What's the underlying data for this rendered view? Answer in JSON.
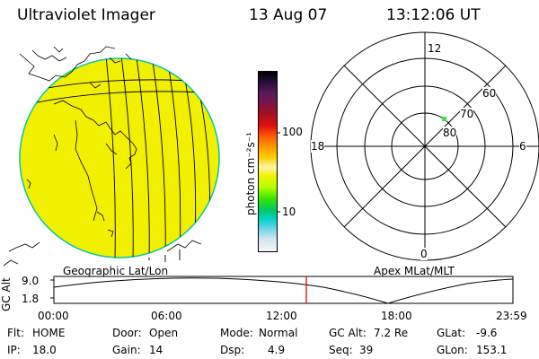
{
  "header": {
    "instrument": "Ultraviolet Imager",
    "date": "13 Aug 07",
    "time": "13:12:06 UT"
  },
  "colorbar": {
    "unit_label": "photon cm⁻²s⁻¹",
    "ticks": [
      {
        "label": "100",
        "value": 100
      },
      {
        "label": "10",
        "value": 10
      }
    ],
    "scale": "log",
    "colors_top_to_bottom": [
      "#000000",
      "#2b0f3a",
      "#5a1a5a",
      "#7a1446",
      "#a8101e",
      "#e01010",
      "#ff5a00",
      "#ff9a00",
      "#ffd200",
      "#fff4a8",
      "#f2f200",
      "#b8ff00",
      "#32e600",
      "#00c864",
      "#00d2c8",
      "#66d2e6",
      "#cfe6ef",
      "#f5f5f5"
    ]
  },
  "globe": {
    "fill_color": "#f0f000",
    "limb_color": "#00c8a0",
    "caption": "Geographic Lat/Lon"
  },
  "polar": {
    "caption": "Apex MLat/MLT",
    "mlt_labels": {
      "top": "12",
      "left": "18",
      "right": "6",
      "bottom": "0"
    },
    "mlat_labels": [
      "60",
      "70",
      "80"
    ],
    "spot_color": "#44dd44"
  },
  "timeline": {
    "axis_label": "GC Alt",
    "y_ticks": [
      "9.0",
      "1.8"
    ],
    "x_ticks": [
      "00:00",
      "06:00",
      "12:00",
      "18:00",
      "23:59"
    ],
    "current_marker_time": "13:12",
    "marker_color": "#e00000"
  },
  "status": {
    "flt_label": "Flt:",
    "flt_value": "HOME",
    "ip_label": "IP:",
    "ip_value": "18.0",
    "door_label": "Door:",
    "door_value": "Open",
    "gain_label": "Gain:",
    "gain_value": "14",
    "mode_label": "Mode:",
    "mode_value": "Normal",
    "dsp_label": "Dsp:",
    "dsp_value": "4.9",
    "gcalt_label": "GC Alt:",
    "gcalt_value": "7.2 Re",
    "seq_label": "Seq:",
    "seq_value": "39",
    "glat_label": "GLat:",
    "glat_value": "-9.6",
    "glon_label": "GLon:",
    "glon_value": "153.1"
  }
}
